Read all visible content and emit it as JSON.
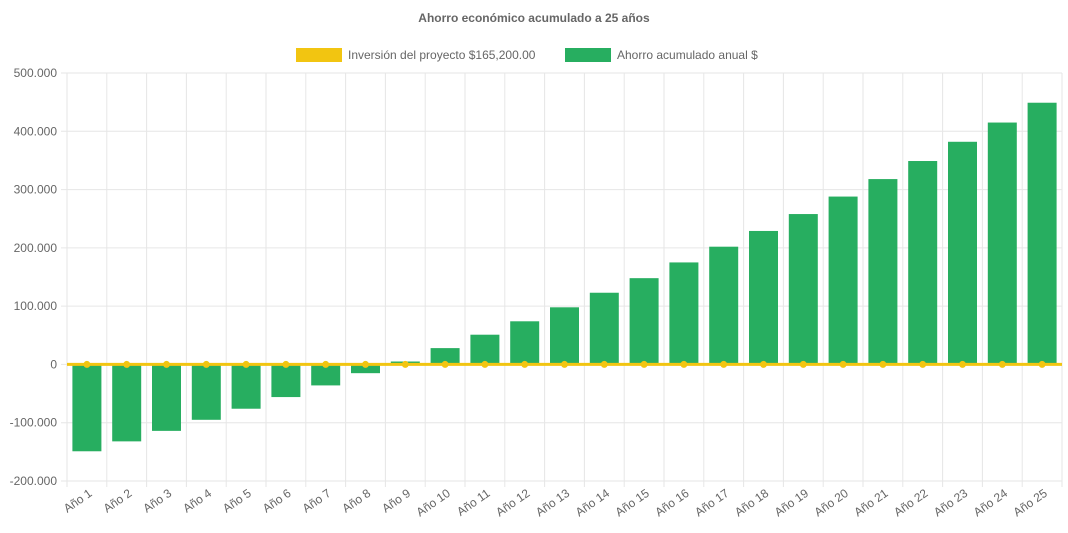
{
  "chart_data": {
    "type": "bar",
    "title": "Ahorro económico acumulado a 25 años",
    "categories": [
      "Año 1",
      "Año 2",
      "Año 3",
      "Año 4",
      "Año 5",
      "Año 6",
      "Año 7",
      "Año 8",
      "Año 9",
      "Año 10",
      "Año 11",
      "Año 12",
      "Año 13",
      "Año 14",
      "Año 15",
      "Año 16",
      "Año 17",
      "Año 18",
      "Año 19",
      "Año 20",
      "Año 21",
      "Año 22",
      "Año 23",
      "Año 24",
      "Año 25"
    ],
    "series": [
      {
        "name": "Inversión del proyecto $165,200.00",
        "type": "line",
        "color": "#f2c511",
        "values": [
          0,
          0,
          0,
          0,
          0,
          0,
          0,
          0,
          0,
          0,
          0,
          0,
          0,
          0,
          0,
          0,
          0,
          0,
          0,
          0,
          0,
          0,
          0,
          0,
          0
        ]
      },
      {
        "name": "Ahorro acumulado anual $",
        "type": "bar",
        "color": "#27ae60",
        "values": [
          -149000,
          -132000,
          -114000,
          -95000,
          -76000,
          -56000,
          -36000,
          -15000,
          5000,
          28000,
          51000,
          74000,
          98000,
          123000,
          148000,
          175000,
          202000,
          229000,
          258000,
          288000,
          318000,
          349000,
          382000,
          415000,
          449000
        ]
      }
    ],
    "yticks": [
      "500.000",
      "400.000",
      "300.000",
      "200.000",
      "100.000",
      "0",
      "-100.000",
      "-200.000"
    ],
    "ylim": [
      -200000,
      500000
    ],
    "grid": true,
    "legend": "top"
  }
}
